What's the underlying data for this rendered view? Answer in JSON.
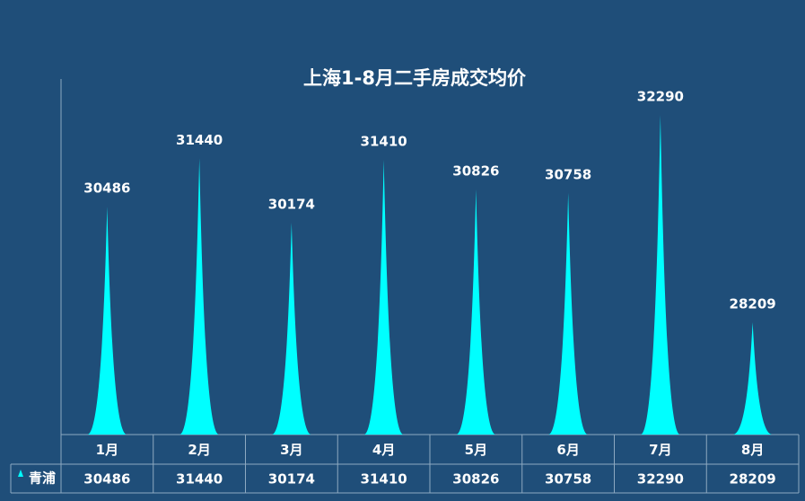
{
  "chart_data": {
    "type": "spike",
    "title": "上海1-8月二手房成交均价",
    "categories": [
      "1月",
      "2月",
      "3月",
      "4月",
      "5月",
      "6月",
      "7月",
      "8月"
    ],
    "series": [
      {
        "name": "青浦",
        "color": "#00ffff",
        "values": [
          30486,
          31440,
          30174,
          31410,
          30826,
          30758,
          32290,
          28209
        ]
      }
    ],
    "ylim": [
      26000,
      33000
    ]
  }
}
